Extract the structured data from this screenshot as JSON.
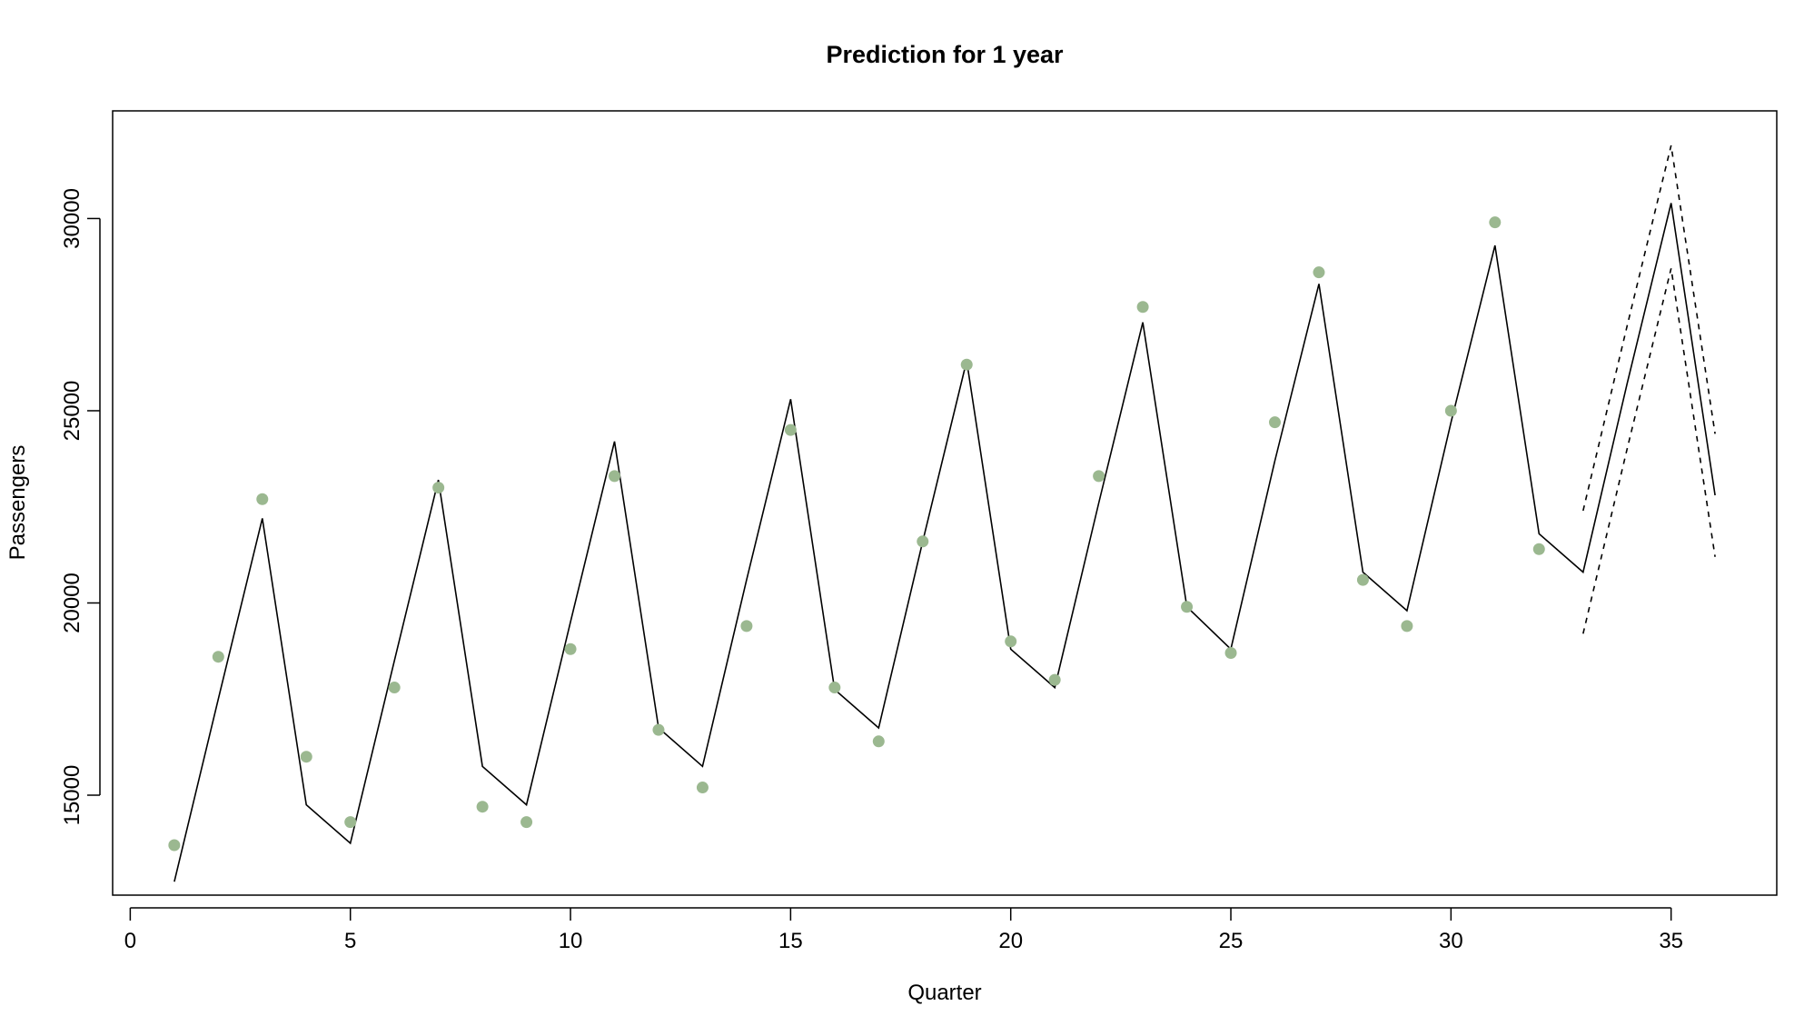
{
  "chart_data": {
    "type": "line",
    "title": "Prediction for 1 year",
    "xlabel": "Quarter",
    "ylabel": "Passengers",
    "xlim": [
      -0.4,
      37.4
    ],
    "ylim": [
      12400,
      32800
    ],
    "x_ticks": [
      0,
      5,
      10,
      15,
      20,
      25,
      30,
      35
    ],
    "y_ticks": [
      15000,
      20000,
      25000,
      30000
    ],
    "grid": false,
    "colors": {
      "points": "#9bb890",
      "line": "#000000"
    },
    "series": [
      {
        "type": "scatter",
        "x": [
          1,
          2,
          3,
          4,
          5,
          6,
          7,
          8,
          9,
          10,
          11,
          12,
          13,
          14,
          15,
          16,
          17,
          18,
          19,
          20,
          21,
          22,
          23,
          24,
          25,
          26,
          27,
          28,
          29,
          30,
          31,
          32
        ],
        "values": [
          13700,
          18600,
          22700,
          16000,
          14300,
          17800,
          23000,
          14700,
          14300,
          18800,
          23300,
          16700,
          15200,
          19400,
          24500,
          17800,
          16400,
          21600,
          26200,
          19000,
          18000,
          23300,
          27700,
          19900,
          18700,
          24700,
          28600,
          20600,
          19400,
          25000,
          29900,
          21400
        ]
      },
      {
        "type": "line",
        "style": "solid",
        "x": [
          1,
          2,
          3,
          4,
          5,
          6,
          7,
          8,
          9,
          10,
          11,
          12,
          13,
          14,
          15,
          16,
          17,
          18,
          19,
          20,
          21,
          22,
          23,
          24,
          25,
          26,
          27,
          28,
          29,
          30,
          31,
          32,
          33,
          34,
          35,
          36
        ],
        "values": [
          12750,
          17500,
          22200,
          14750,
          13750,
          18500,
          23200,
          15750,
          14750,
          19500,
          24200,
          16750,
          15750,
          20600,
          25300,
          17750,
          16750,
          21600,
          26300,
          18800,
          17800,
          22600,
          27300,
          19900,
          18800,
          23700,
          28300,
          20800,
          19800,
          24700,
          29300,
          21800,
          20800,
          25700,
          30400,
          22800
        ]
      },
      {
        "type": "line",
        "style": "dashed",
        "x": [
          33,
          34,
          35,
          36
        ],
        "values": [
          22400,
          27200,
          31900,
          24400
        ]
      },
      {
        "type": "line",
        "style": "dashed",
        "x": [
          33,
          34,
          35,
          36
        ],
        "values": [
          19200,
          24000,
          28700,
          21200
        ]
      }
    ]
  }
}
